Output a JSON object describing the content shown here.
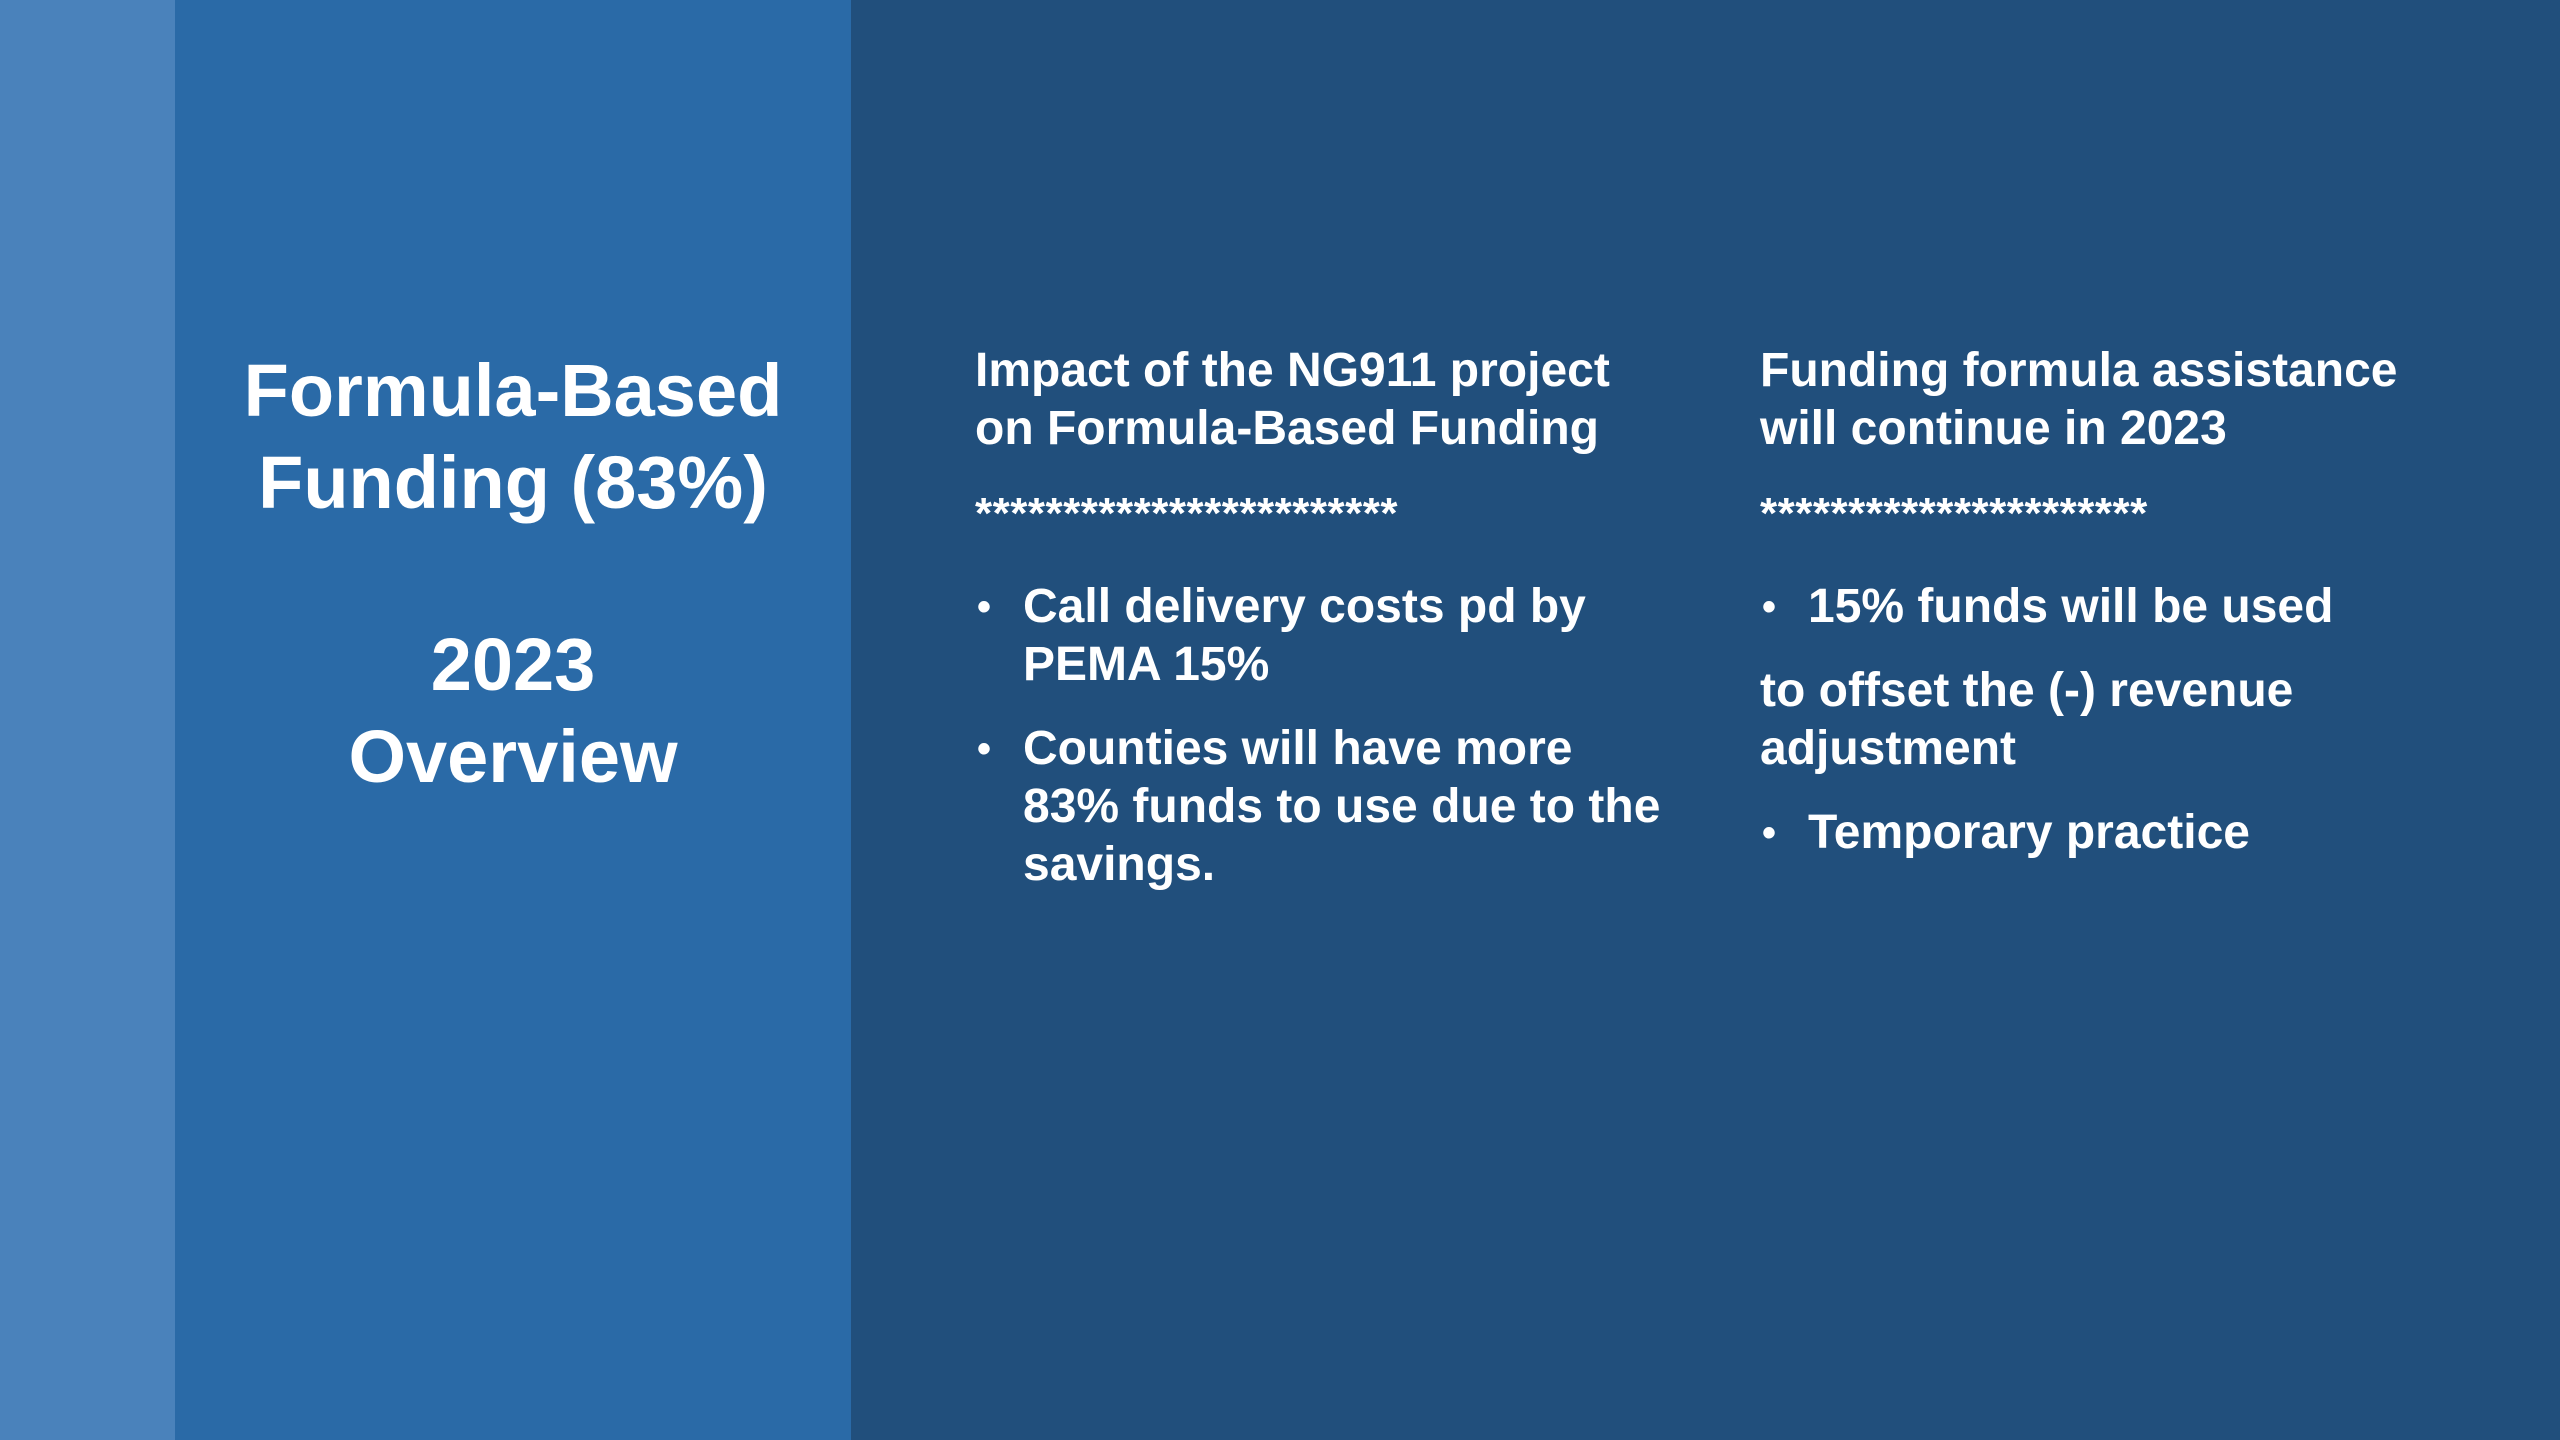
{
  "title": {
    "line1": "Formula-Based",
    "line2": "Funding (83%)",
    "line3": "2023",
    "line4": "Overview"
  },
  "left_column": {
    "heading_line1": "Impact of the NG911 project",
    "heading_line2": "on Formula-Based Funding",
    "separator": "************************",
    "bullets": [
      "Call delivery costs pd by PEMA 15%",
      "Counties will have more 83% funds to use due to the savings."
    ]
  },
  "right_column": {
    "heading_line1": "Funding formula assistance",
    "heading_line2": "will continue in 2023",
    "separator": "**********************",
    "bullet1": "15% funds will be used",
    "paragraph": "to offset the (-) revenue adjustment",
    "bullet2": "Temporary practice"
  },
  "bullet_glyph": "•",
  "colors": {
    "background": "#214f7c",
    "stripe": "#4a82bb",
    "title_panel": "#2a6aa7",
    "text": "#ffffff"
  }
}
